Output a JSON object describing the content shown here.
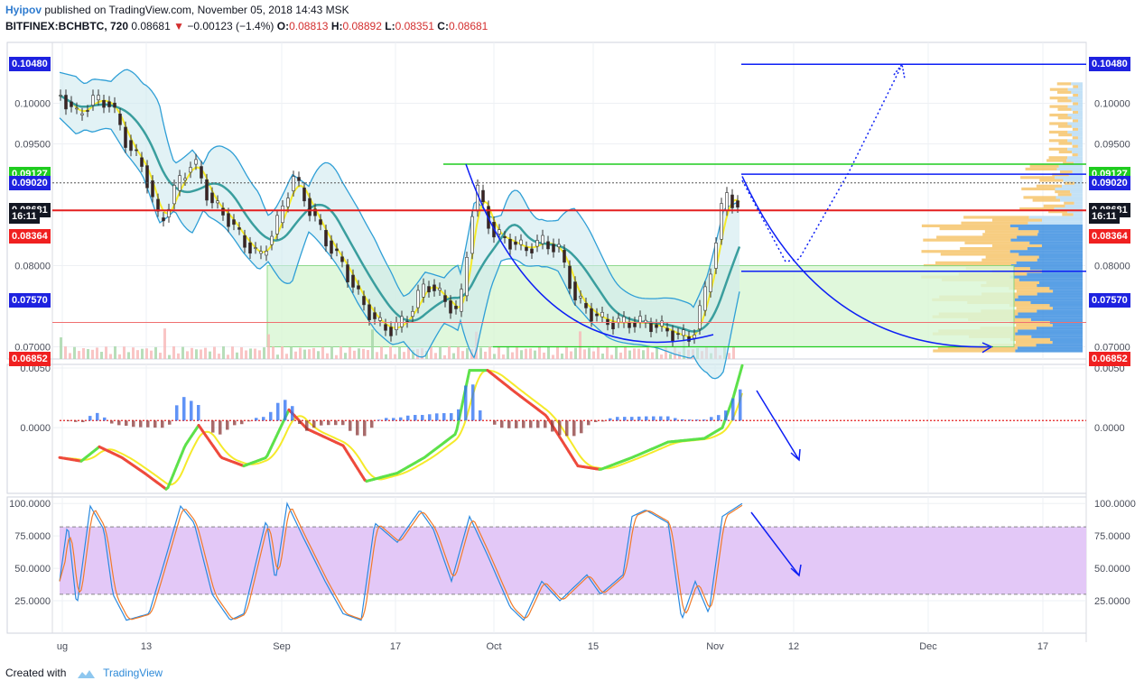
{
  "header": {
    "author": "Hyipov",
    "published_text": "published on TradingView.com, November 05, 2018 14:43 MSK",
    "symbol": "BITFINEX:BCHBTC, 720",
    "last": "0.08681",
    "change": "−0.00123 (−1.4%)",
    "o_label": "O:",
    "o_value": "0.08813",
    "h_label": "H:",
    "h_value": "0.08892",
    "l_label": "L:",
    "l_value": "0.08351",
    "c_label": "C:",
    "c_value": "0.08681"
  },
  "footer": {
    "created_with": "Created with",
    "brand": "TradingView"
  },
  "colors": {
    "up": "#4caf50",
    "down": "#f44336",
    "accent_blue": "#0d1ff5",
    "range_box": "#dbf7d6"
  },
  "price_badges": {
    "left": [
      {
        "text": "0.10480",
        "color": "#1e22e0",
        "price": 0.1048
      },
      {
        "text": "0.09127",
        "color": "#1fcc1f",
        "price": 0.09127
      },
      {
        "text": "0.09020",
        "color": "#1e22e0",
        "price": 0.0902
      },
      {
        "text": "0.08681",
        "color": "#131722",
        "price": 0.08681
      },
      {
        "text": "16:11",
        "color": "#131722",
        "price": 0.08611
      },
      {
        "text": "0.08364",
        "color": "#f02020",
        "price": 0.08364
      },
      {
        "text": "0.07570",
        "color": "#1e22e0",
        "price": 0.0757
      },
      {
        "text": "0.06852",
        "color": "#f02020",
        "price": 0.06852
      }
    ],
    "right": [
      {
        "text": "0.10480",
        "color": "#1e22e0",
        "price": 0.1048
      },
      {
        "text": "0.09127",
        "color": "#1fcc1f",
        "price": 0.09127
      },
      {
        "text": "0.09020",
        "color": "#1e22e0",
        "price": 0.0902
      },
      {
        "text": "0.08681",
        "color": "#131722",
        "price": 0.08681
      },
      {
        "text": "16:11",
        "color": "#131722",
        "price": 0.08611
      },
      {
        "text": "0.08364",
        "color": "#f02020",
        "price": 0.08364
      },
      {
        "text": "0.07570",
        "color": "#1e22e0",
        "price": 0.0757
      },
      {
        "text": "0.06852",
        "color": "#f02020",
        "price": 0.06852
      }
    ]
  },
  "chart_data": [
    {
      "type": "candlestick",
      "title": "",
      "y_ticks": [
        "0.10000",
        "0.09500",
        "0.08000",
        "0.07000"
      ],
      "y_tick_values": [
        0.1,
        0.095,
        0.08,
        0.07
      ],
      "ylim": [
        0.0685,
        0.1075
      ],
      "x_ticks": [
        "ug",
        "13",
        "Sep",
        "17",
        "Oct",
        "15",
        "Nov",
        "12",
        "Dec",
        "17"
      ],
      "close_series_approx": [
        0.101,
        0.0985,
        0.1005,
        0.1,
        0.095,
        0.092,
        0.085,
        0.09,
        0.093,
        0.088,
        0.086,
        0.083,
        0.081,
        0.085,
        0.091,
        0.087,
        0.083,
        0.08,
        0.076,
        0.073,
        0.072,
        0.074,
        0.078,
        0.076,
        0.074,
        0.09,
        0.084,
        0.083,
        0.082,
        0.083,
        0.082,
        0.076,
        0.074,
        0.073,
        0.073,
        0.073,
        0.0725,
        0.0715,
        0.071,
        0.078,
        0.089,
        0.0868
      ],
      "levels": [
        0.1048,
        0.0925,
        0.09127,
        0.0902,
        0.08681,
        0.0793,
        0.073,
        0.07
      ]
    },
    {
      "type": "histogram",
      "title": "",
      "y_ticks": [
        "0.0050",
        "0.0000"
      ],
      "y_tick_values": [
        0.005,
        0.0
      ],
      "ylim": [
        -0.0055,
        0.0053
      ]
    },
    {
      "type": "line",
      "title": "",
      "y_ticks": [
        "100.0000",
        "75.0000",
        "50.0000",
        "25.0000"
      ],
      "y_tick_values": [
        100,
        75,
        50,
        25
      ],
      "ylim": [
        0,
        105
      ],
      "band": [
        30,
        82
      ]
    }
  ]
}
